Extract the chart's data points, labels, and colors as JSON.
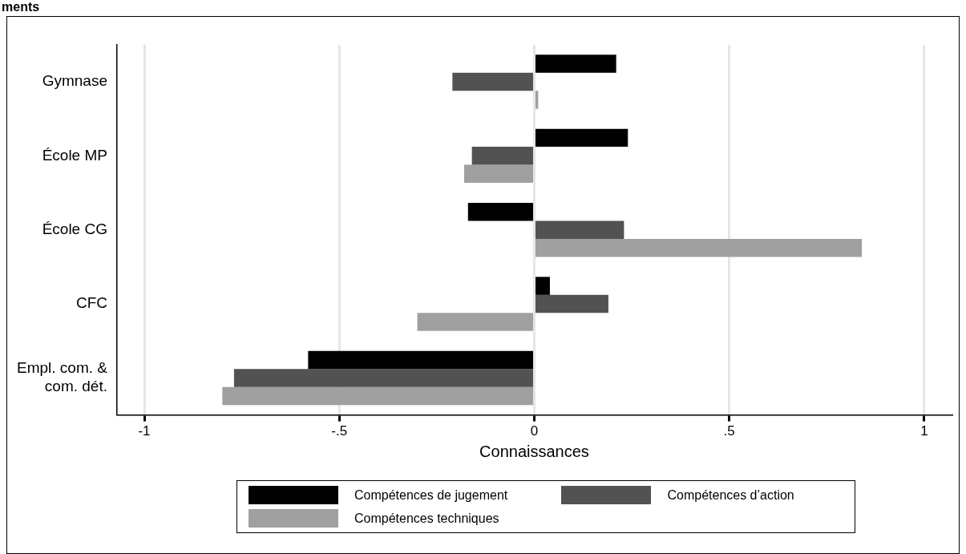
{
  "chart_data": {
    "type": "bar",
    "orientation": "horizontal",
    "title": "ments",
    "xlabel": "Connaissances",
    "categories": [
      "Gymnase",
      "École MP",
      "École CG",
      "CFC",
      "Empl. com. & com. dét."
    ],
    "series": [
      {
        "name": "Compétences de jugement",
        "color": "#000000",
        "values": [
          0.21,
          0.24,
          -0.17,
          0.04,
          -0.58
        ]
      },
      {
        "name": "Compétences d’action",
        "color": "#525252",
        "values": [
          -0.21,
          -0.16,
          0.23,
          0.19,
          -0.77
        ]
      },
      {
        "name": "Compétences techniques",
        "color": "#a0a0a0",
        "values": [
          0.01,
          -0.18,
          0.84,
          -0.3,
          -0.8
        ]
      }
    ],
    "xlim": [
      -1.07,
      1.07
    ],
    "xticks": [
      {
        "value": -1,
        "label": "-1"
      },
      {
        "value": -0.5,
        "label": "-.5"
      },
      0,
      {
        "value": 0.5,
        "label": ".5"
      },
      1
    ],
    "grid": "x",
    "legend": "bottom"
  }
}
